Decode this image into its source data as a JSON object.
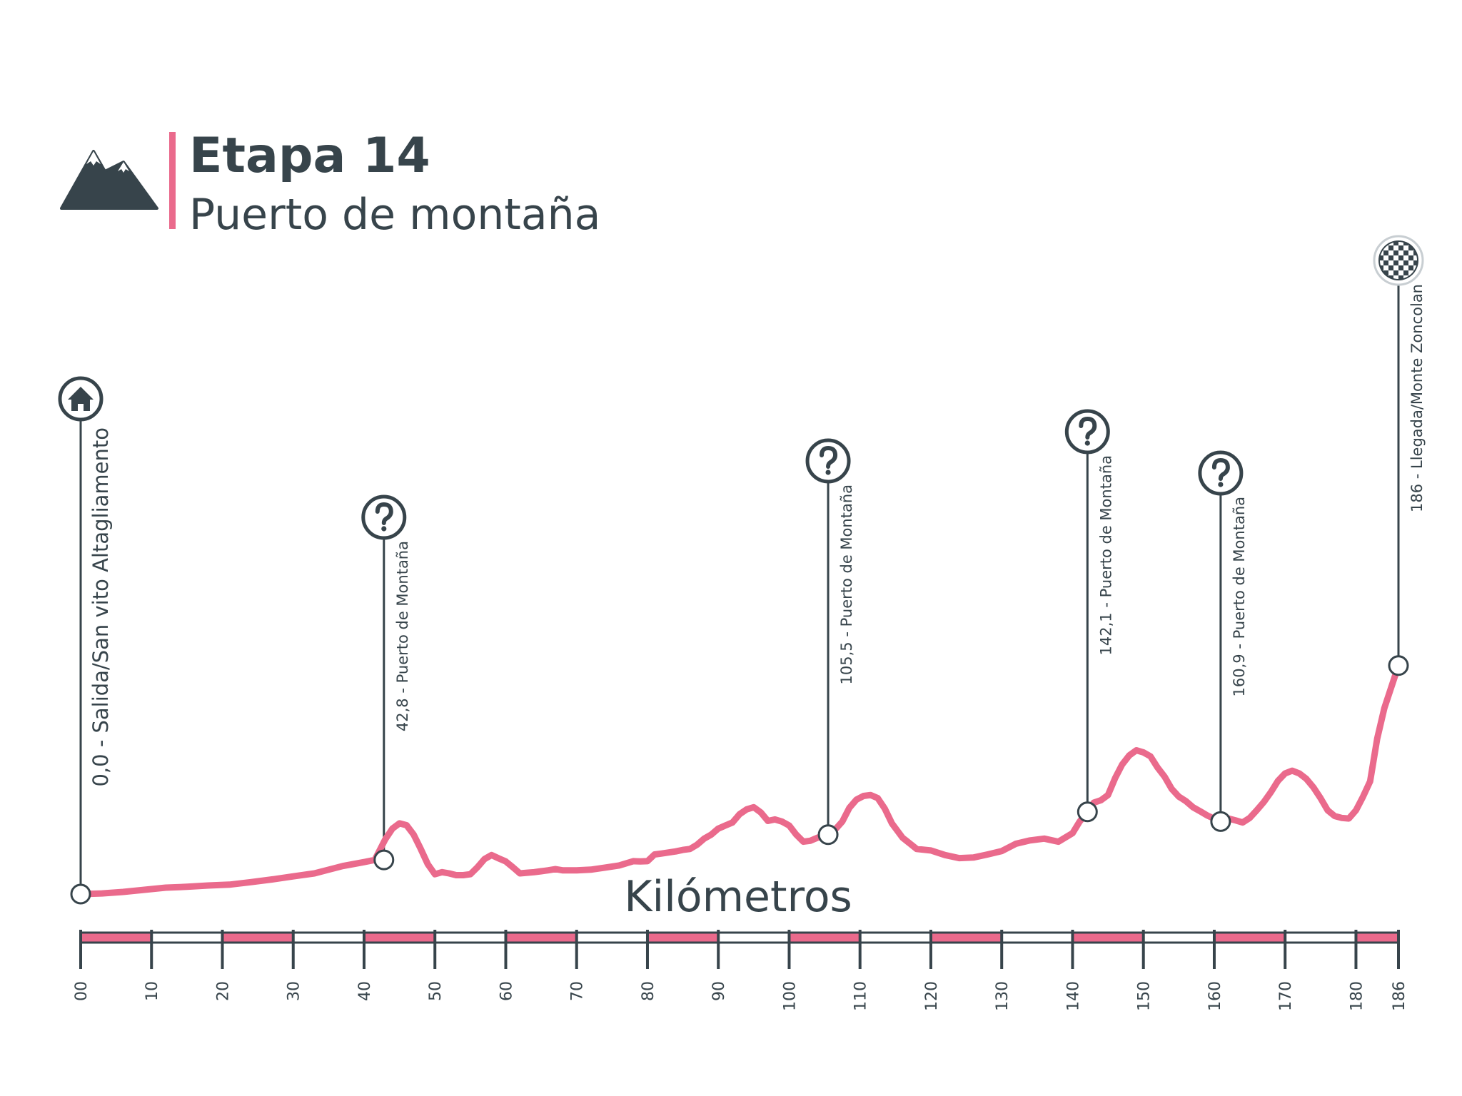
{
  "header": {
    "title": "Etapa 14",
    "subtitle": "Puerto de montaña",
    "icon": "mountain-icon"
  },
  "colors": {
    "dark": "#37444b",
    "accent": "#ea6a8c",
    "white": "#ffffff"
  },
  "chart_data": {
    "type": "line",
    "title": "Etapa 14",
    "subtitle": "Puerto de montaña",
    "xlabel": "Kilómetros",
    "ylabel": "",
    "xlim": [
      0,
      186
    ],
    "ylim": [
      0,
      1
    ],
    "x_ticks": [
      "00",
      "10",
      "20",
      "30",
      "40",
      "50",
      "60",
      "70",
      "80",
      "90",
      "100",
      "110",
      "120",
      "130",
      "140",
      "150",
      "160",
      "170",
      "180",
      "186"
    ],
    "x_tick_values": [
      0,
      10,
      20,
      30,
      40,
      50,
      60,
      70,
      80,
      90,
      100,
      110,
      120,
      130,
      140,
      150,
      160,
      170,
      180,
      186
    ],
    "series": [
      {
        "name": "",
        "x": [
          0,
          3,
          6,
          9,
          12,
          15,
          18,
          21,
          24,
          27,
          30,
          33,
          35,
          37,
          40,
          41.5,
          43,
          44,
          45,
          46,
          47,
          48,
          49,
          50,
          51,
          52,
          53,
          54,
          55,
          56,
          57,
          58,
          59,
          60,
          61,
          62,
          63,
          64,
          65,
          66,
          67,
          68,
          70,
          72,
          74,
          76,
          78,
          79,
          80,
          81,
          82,
          84,
          85,
          86,
          87,
          88,
          89,
          90,
          91,
          92,
          93,
          94,
          95,
          96,
          97,
          98,
          99,
          100,
          101,
          102,
          103,
          104,
          105.5,
          106.5,
          107.5,
          108.5,
          109.5,
          110.5,
          111.5,
          112.5,
          113.5,
          114.5,
          116,
          118,
          120,
          122,
          124,
          126,
          128,
          130,
          132,
          134,
          136,
          138,
          140,
          141,
          142.1,
          143,
          144,
          145,
          146,
          147,
          148,
          149,
          150,
          151,
          152,
          153,
          154,
          155,
          156,
          157,
          158,
          159,
          160.9,
          162,
          163,
          164,
          165,
          166,
          167,
          168,
          169,
          170,
          171,
          172,
          173,
          174,
          175,
          176,
          177,
          178,
          179,
          180,
          181,
          182,
          183,
          184,
          185,
          186
        ],
        "y": [
          0,
          0.002,
          0.007,
          0.014,
          0.021,
          0.024,
          0.028,
          0.031,
          0.039,
          0.048,
          0.058,
          0.068,
          0.08,
          0.092,
          0.105,
          0.112,
          0.18,
          0.215,
          0.232,
          0.226,
          0.195,
          0.148,
          0.098,
          0.065,
          0.072,
          0.068,
          0.062,
          0.062,
          0.065,
          0.088,
          0.115,
          0.128,
          0.117,
          0.107,
          0.088,
          0.068,
          0.07,
          0.072,
          0.075,
          0.078,
          0.082,
          0.078,
          0.078,
          0.08,
          0.087,
          0.094,
          0.108,
          0.107,
          0.108,
          0.13,
          0.133,
          0.14,
          0.145,
          0.148,
          0.162,
          0.182,
          0.195,
          0.215,
          0.225,
          0.235,
          0.262,
          0.278,
          0.285,
          0.268,
          0.24,
          0.245,
          0.238,
          0.225,
          0.195,
          0.172,
          0.175,
          0.185,
          0.195,
          0.212,
          0.238,
          0.283,
          0.31,
          0.322,
          0.325,
          0.315,
          0.28,
          0.232,
          0.185,
          0.148,
          0.143,
          0.128,
          0.118,
          0.12,
          0.13,
          0.141,
          0.165,
          0.176,
          0.182,
          0.172,
          0.2,
          0.238,
          0.27,
          0.3,
          0.308,
          0.325,
          0.38,
          0.425,
          0.455,
          0.472,
          0.465,
          0.452,
          0.415,
          0.385,
          0.345,
          0.32,
          0.305,
          0.285,
          0.272,
          0.258,
          0.238,
          0.248,
          0.242,
          0.235,
          0.25,
          0.275,
          0.302,
          0.335,
          0.372,
          0.396,
          0.405,
          0.396,
          0.378,
          0.35,
          0.315,
          0.275,
          0.256,
          0.25,
          0.248,
          0.275,
          0.32,
          0.37,
          0.51,
          0.61,
          0.68,
          0.75
        ]
      }
    ],
    "waypoints": [
      {
        "km": 0,
        "y": 0,
        "label": "0,0 - Salida/San vito Altagliamento",
        "icon": "home-icon"
      },
      {
        "km": 42.8,
        "y": 0.112,
        "label": "42,8 - Puerto de Montaña",
        "icon": "question-icon"
      },
      {
        "km": 105.5,
        "y": 0.195,
        "label": "105,5 - Puerto de Montaña",
        "icon": "question-icon"
      },
      {
        "km": 142.1,
        "y": 0.27,
        "label": "142,1 - Puerto de Montaña",
        "icon": "question-icon"
      },
      {
        "km": 160.9,
        "y": 0.238,
        "label": "160,9 - Puerto de Montaña",
        "icon": "question-icon"
      },
      {
        "km": 186,
        "y": 0.75,
        "label": "186 - Llegada/Monte Zoncolan",
        "icon": "checkered-flag-icon"
      }
    ],
    "grid": false,
    "legend": "none"
  }
}
